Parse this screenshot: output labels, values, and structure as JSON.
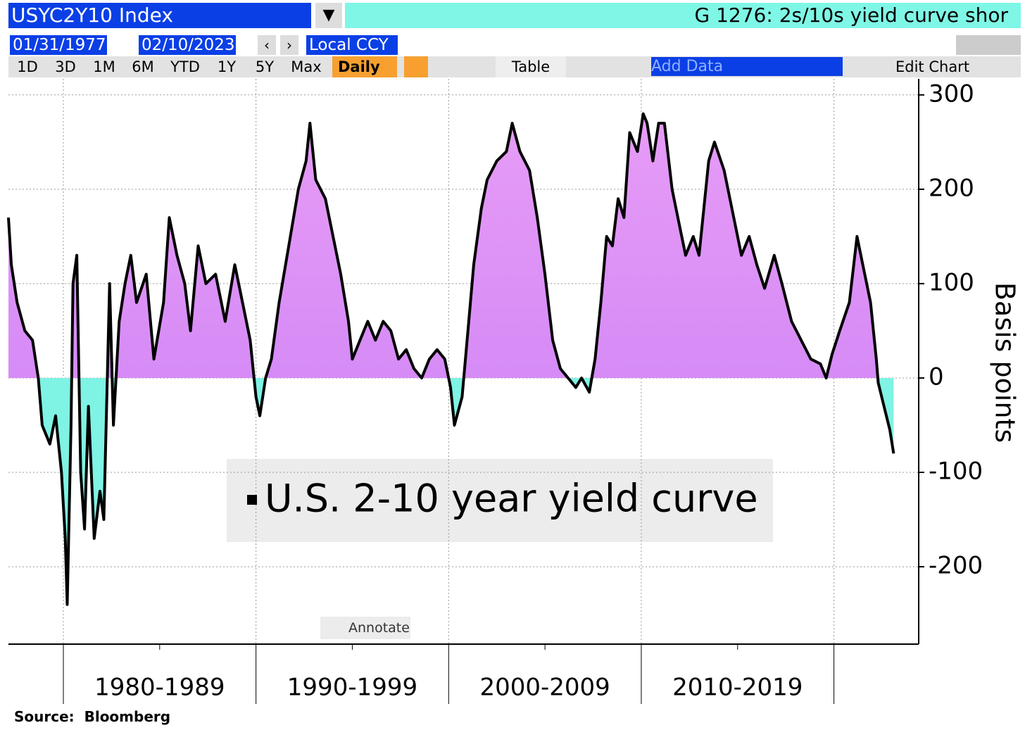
{
  "header": {
    "ticker": "USYC2Y10 Index",
    "title": "G 1276: 2s/10s yield curve shor"
  },
  "toolbar": {
    "start_date": "01/31/1977",
    "end_date": "02/10/2023",
    "currency": "Local CCY",
    "ranges": [
      "1D",
      "3D",
      "1M",
      "6M",
      "YTD",
      "1Y",
      "5Y",
      "Max"
    ],
    "frequency": "Daily",
    "table": "Table",
    "add_data": "Add Data",
    "edit_chart": "Edit Chart",
    "annotate": "Annotate"
  },
  "source": "Source:  Bloomberg",
  "chart_data": {
    "type": "line",
    "ylabel": "Basis points",
    "xlim": [
      1977.15,
      2024.4
    ],
    "xgrid": [
      1980,
      1990,
      2000,
      2010,
      2020
    ],
    "xticks": [
      {
        "value": 1985,
        "label": "1980-1989"
      },
      {
        "value": 1995,
        "label": "1990-1999"
      },
      {
        "value": 2005,
        "label": "2000-2009"
      },
      {
        "value": 2015,
        "label": "2010-2019"
      }
    ],
    "ylim": [
      -282,
      317
    ],
    "yticks": [
      -200,
      -100,
      0,
      100,
      200,
      300
    ],
    "grid": true,
    "fill_positive": "#e79cf7",
    "fill_negative": "#7ff3e4",
    "x": [
      1977.15,
      1977.3,
      1977.6,
      1978.0,
      1978.4,
      1978.7,
      1978.9,
      1979.3,
      1979.6,
      1979.9,
      1980.1,
      1980.2,
      1980.4,
      1980.5,
      1980.7,
      1980.9,
      1981.1,
      1981.3,
      1981.6,
      1981.9,
      1982.1,
      1982.4,
      1982.6,
      1982.9,
      1983.2,
      1983.5,
      1983.8,
      1984.3,
      1984.7,
      1985.2,
      1985.5,
      1985.9,
      1986.3,
      1986.6,
      1987.0,
      1987.4,
      1987.9,
      1988.4,
      1988.9,
      1989.3,
      1989.7,
      1990.0,
      1990.2,
      1990.5,
      1990.8,
      1991.2,
      1991.7,
      1992.2,
      1992.6,
      1992.8,
      1993.1,
      1993.6,
      1994.0,
      1994.4,
      1994.8,
      1995.0,
      1995.4,
      1995.8,
      1996.2,
      1996.6,
      1997.0,
      1997.4,
      1997.8,
      1998.2,
      1998.6,
      1999.0,
      1999.4,
      1999.8,
      2000.1,
      2000.3,
      2000.7,
      2001.0,
      2001.3,
      2001.7,
      2002.0,
      2002.5,
      2003.0,
      2003.3,
      2003.7,
      2004.2,
      2004.6,
      2005.0,
      2005.4,
      2005.8,
      2006.2,
      2006.6,
      2006.9,
      2007.3,
      2007.6,
      2007.9,
      2008.2,
      2008.5,
      2008.8,
      2009.1,
      2009.4,
      2009.8,
      2010.1,
      2010.3,
      2010.6,
      2010.9,
      2011.2,
      2011.6,
      2011.9,
      2012.3,
      2012.7,
      2013.0,
      2013.5,
      2013.8,
      2014.3,
      2014.8,
      2015.2,
      2015.6,
      2016.0,
      2016.4,
      2016.9,
      2017.3,
      2017.8,
      2018.3,
      2018.8,
      2019.3,
      2019.6,
      2019.9,
      2020.3,
      2020.8,
      2021.2,
      2021.5,
      2021.9,
      2022.2,
      2022.3,
      2022.6,
      2022.9,
      2023.1
    ],
    "series": [
      {
        "name": "U.S. 2-10 year yield curve",
        "color": "#000000",
        "values": [
          170,
          120,
          80,
          50,
          40,
          0,
          -50,
          -70,
          -40,
          -100,
          -170,
          -240,
          -50,
          100,
          130,
          -100,
          -160,
          -30,
          -170,
          -120,
          -150,
          100,
          -50,
          60,
          100,
          130,
          80,
          110,
          20,
          80,
          170,
          130,
          100,
          50,
          140,
          100,
          110,
          60,
          120,
          80,
          40,
          -20,
          -40,
          0,
          20,
          80,
          140,
          200,
          230,
          270,
          210,
          190,
          150,
          110,
          60,
          20,
          40,
          60,
          40,
          60,
          50,
          20,
          30,
          10,
          0,
          20,
          30,
          20,
          -10,
          -50,
          -20,
          50,
          120,
          180,
          210,
          230,
          240,
          270,
          240,
          220,
          170,
          110,
          40,
          10,
          0,
          -10,
          0,
          -15,
          20,
          80,
          150,
          140,
          190,
          170,
          260,
          240,
          280,
          270,
          230,
          270,
          270,
          200,
          170,
          130,
          150,
          130,
          230,
          250,
          220,
          170,
          130,
          150,
          120,
          95,
          130,
          100,
          60,
          40,
          20,
          15,
          0,
          25,
          50,
          80,
          150,
          120,
          80,
          20,
          -5,
          -30,
          -55,
          -80
        ]
      }
    ]
  }
}
